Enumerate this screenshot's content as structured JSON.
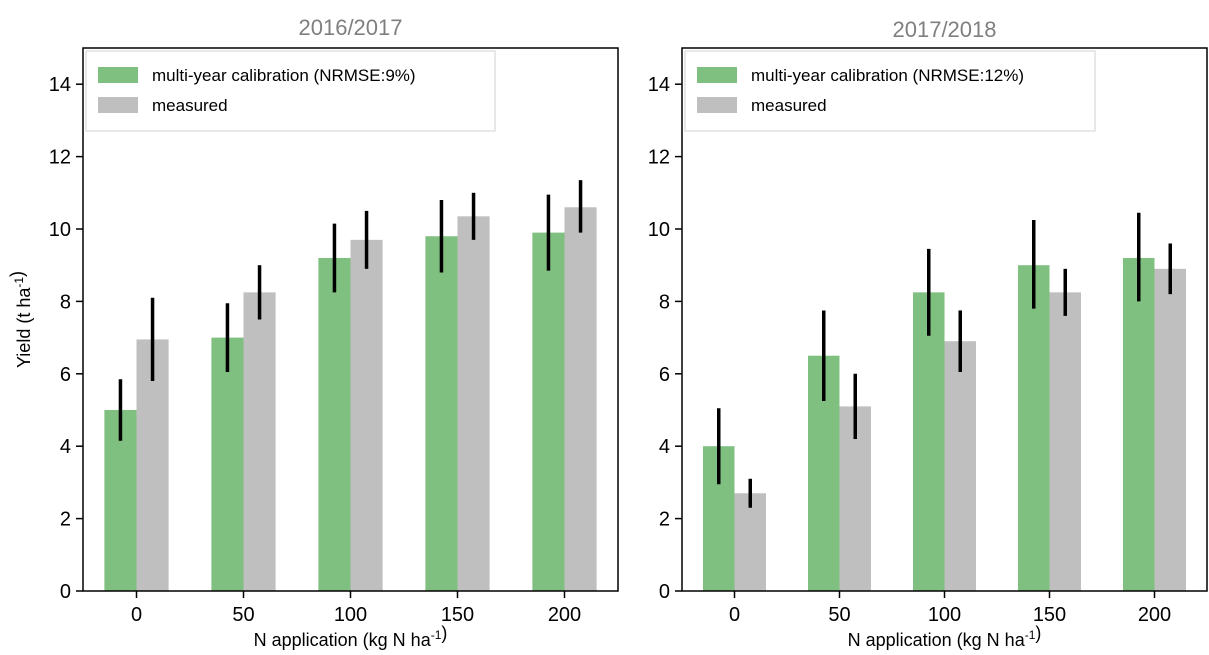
{
  "chart_data": [
    {
      "type": "bar",
      "title": "2016/2017",
      "xlabel": "N application (kg N ha⁻¹)",
      "ylabel": "Yield (t ha⁻¹)",
      "ylim": [
        0,
        15
      ],
      "yticks": [
        0,
        2,
        4,
        6,
        8,
        10,
        12,
        14
      ],
      "categories": [
        "0",
        "50",
        "100",
        "150",
        "200"
      ],
      "legend_position": "top-left",
      "grid": false,
      "series": [
        {
          "name": "multi-year calibration (NRMSE:9%)",
          "color": "#7fbf7f",
          "values": [
            5.0,
            7.0,
            9.2,
            9.8,
            9.9
          ],
          "error_low": [
            4.15,
            6.05,
            8.25,
            8.8,
            8.85
          ],
          "error_high": [
            5.85,
            7.95,
            10.15,
            10.8,
            10.95
          ]
        },
        {
          "name": "measured",
          "color": "#bfbfbf",
          "values": [
            6.95,
            8.25,
            9.7,
            10.35,
            10.6
          ],
          "error_low": [
            5.8,
            7.5,
            8.9,
            9.7,
            9.9
          ],
          "error_high": [
            8.1,
            9.0,
            10.5,
            11.0,
            11.35
          ]
        }
      ]
    },
    {
      "type": "bar",
      "title": "2017/2018",
      "xlabel": "N application (kg N ha⁻¹)",
      "ylabel": "",
      "ylim": [
        0,
        15
      ],
      "yticks": [
        0,
        2,
        4,
        6,
        8,
        10,
        12,
        14
      ],
      "categories": [
        "0",
        "50",
        "100",
        "150",
        "200"
      ],
      "legend_position": "top-left",
      "grid": false,
      "series": [
        {
          "name": "multi-year calibration (NRMSE:12%)",
          "color": "#7fbf7f",
          "values": [
            4.0,
            6.5,
            8.25,
            9.0,
            9.2
          ],
          "error_low": [
            2.95,
            5.25,
            7.05,
            7.8,
            8.0
          ],
          "error_high": [
            5.05,
            7.75,
            9.45,
            10.25,
            10.45
          ]
        },
        {
          "name": "measured",
          "color": "#bfbfbf",
          "values": [
            2.7,
            5.1,
            6.9,
            8.25,
            8.9
          ],
          "error_low": [
            2.3,
            4.2,
            6.05,
            7.6,
            8.2
          ],
          "error_high": [
            3.1,
            6.0,
            7.75,
            8.9,
            9.6
          ]
        }
      ]
    }
  ]
}
